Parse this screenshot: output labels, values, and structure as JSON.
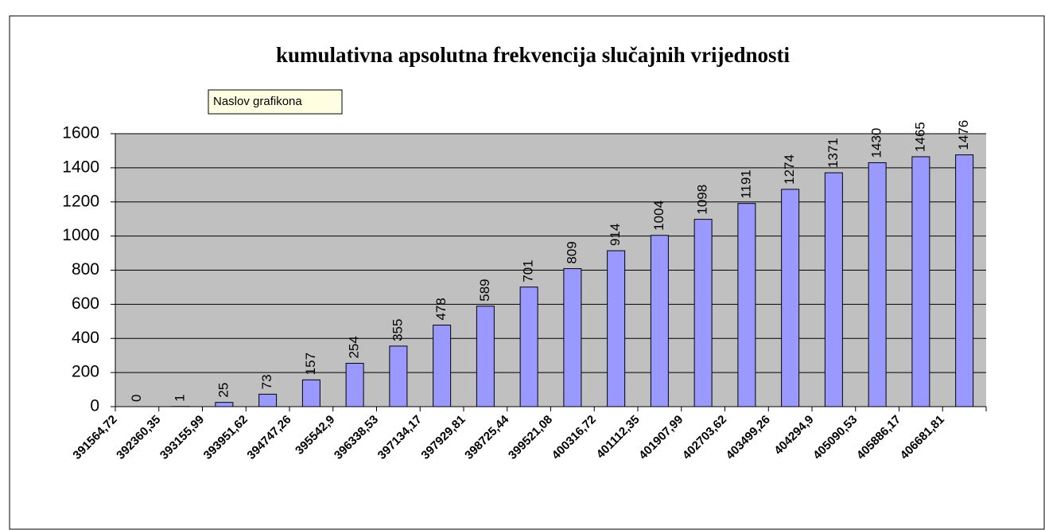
{
  "chart_data": {
    "type": "bar",
    "title": "kumulativna apsolutna frekvencija slučajnih vrijednosti",
    "tooltip": "Naslov grafikona",
    "categories": [
      "391564,72",
      "392360,35",
      "393155,99",
      "393951,62",
      "394747,26",
      "395542,9",
      "396338,53",
      "397134,17",
      "397929,81",
      "398725,44",
      "399521,08",
      "400316,72",
      "401112,35",
      "401907,99",
      "402703,62",
      "403499,26",
      "404294,9",
      "405090,53",
      "405886,17",
      "406681,81"
    ],
    "values": [
      0,
      1,
      25,
      73,
      157,
      254,
      355,
      478,
      589,
      701,
      809,
      914,
      1004,
      1098,
      1191,
      1274,
      1371,
      1430,
      1465,
      1476
    ],
    "color": "#9999ff",
    "ylim": [
      0,
      1600
    ],
    "yticks": [
      0,
      200,
      400,
      600,
      800,
      1000,
      1200,
      1400,
      1600
    ],
    "grid": true
  }
}
